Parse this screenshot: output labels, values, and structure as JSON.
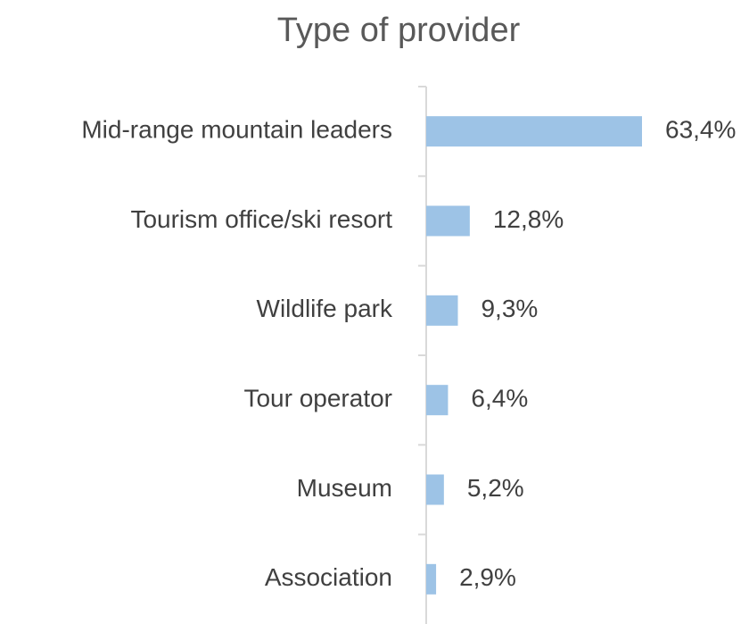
{
  "chart_data": {
    "type": "barh",
    "title": "Type of provider",
    "categories": [
      "Mid-range mountain leaders",
      "Tourism office/ski resort",
      "Wildlife park",
      "Tour operator",
      "Museum",
      "Association"
    ],
    "values": [
      63.4,
      12.8,
      9.3,
      6.4,
      5.2,
      2.9
    ],
    "value_labels": [
      "63,4%",
      "12,8%",
      "9,3%",
      "6,4%",
      "5,2%",
      "2,9%"
    ],
    "color": "#9dc3e6"
  }
}
